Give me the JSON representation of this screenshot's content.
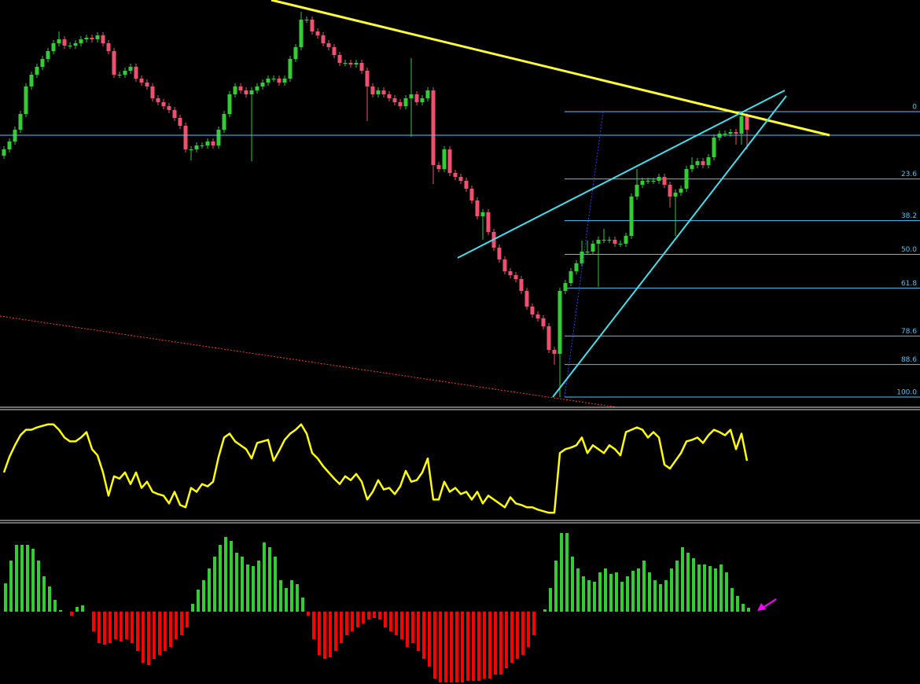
{
  "chart_data": [
    {
      "type": "candlestick",
      "ylim": [
        0,
        518
      ],
      "up_color": "#32cd32",
      "down_color": "#f0506e",
      "open": [
        320,
        328,
        338,
        353,
        373,
        408,
        423,
        433,
        443,
        453,
        463,
        468,
        460,
        460,
        463,
        468,
        470,
        468,
        473,
        463,
        453,
        423,
        423,
        428,
        433,
        418,
        413,
        408,
        393,
        388,
        383,
        378,
        368,
        358,
        328,
        328,
        333,
        333,
        338,
        333,
        353,
        373,
        398,
        408,
        403,
        398,
        403,
        408,
        413,
        418,
        418,
        413,
        418,
        443,
        458,
        493,
        493,
        478,
        473,
        463,
        458,
        448,
        438,
        438,
        436,
        438,
        428,
        408,
        398,
        403,
        398,
        393,
        388,
        383,
        393,
        398,
        388,
        393,
        403,
        308,
        303,
        328,
        298,
        293,
        288,
        278,
        263,
        243,
        248,
        223,
        203,
        188,
        173,
        168,
        163,
        148,
        128,
        118,
        113,
        103,
        73,
        68,
        148,
        158,
        173,
        183,
        198,
        198,
        208,
        213,
        213,
        213,
        208,
        208,
        218,
        268,
        283,
        288,
        288,
        288,
        293,
        283,
        268,
        273,
        278,
        303,
        308,
        313,
        308,
        318,
        343,
        348,
        348,
        350,
        348,
        370
      ],
      "high": [
        332,
        342,
        357,
        377,
        412,
        427,
        437,
        447,
        457,
        467,
        478,
        472,
        464,
        467,
        472,
        474,
        474,
        477,
        477,
        467,
        457,
        427,
        432,
        437,
        437,
        422,
        417,
        412,
        397,
        392,
        387,
        382,
        372,
        362,
        332,
        337,
        337,
        342,
        342,
        357,
        377,
        402,
        412,
        412,
        407,
        407,
        412,
        417,
        422,
        422,
        422,
        422,
        447,
        462,
        503,
        497,
        497,
        482,
        477,
        467,
        462,
        452,
        442,
        442,
        442,
        442,
        432,
        412,
        407,
        407,
        402,
        397,
        392,
        397,
        444,
        402,
        397,
        407,
        407,
        312,
        332,
        332,
        302,
        297,
        292,
        282,
        267,
        252,
        252,
        227,
        207,
        192,
        177,
        172,
        167,
        152,
        132,
        122,
        117,
        107,
        77,
        152,
        162,
        177,
        187,
        212,
        212,
        212,
        217,
        227,
        217,
        217,
        212,
        222,
        272,
        303,
        292,
        292,
        292,
        297,
        297,
        287,
        277,
        282,
        307,
        318,
        317,
        317,
        322,
        347,
        352,
        352,
        354,
        354,
        376,
        374
      ],
      "low": [
        316,
        324,
        334,
        349,
        369,
        404,
        419,
        429,
        439,
        449,
        459,
        456,
        456,
        456,
        459,
        464,
        464,
        464,
        459,
        449,
        419,
        419,
        419,
        424,
        414,
        409,
        404,
        389,
        384,
        379,
        374,
        364,
        354,
        324,
        314,
        324,
        329,
        329,
        329,
        329,
        349,
        369,
        394,
        399,
        394,
        313,
        399,
        404,
        409,
        414,
        409,
        409,
        414,
        439,
        454,
        489,
        474,
        469,
        459,
        454,
        444,
        434,
        434,
        432,
        432,
        424,
        364,
        394,
        394,
        394,
        389,
        384,
        379,
        379,
        344,
        384,
        384,
        389,
        284,
        299,
        299,
        294,
        289,
        284,
        274,
        259,
        239,
        213,
        219,
        199,
        184,
        169,
        164,
        159,
        144,
        124,
        114,
        109,
        99,
        69,
        54,
        13,
        144,
        154,
        169,
        179,
        194,
        194,
        153,
        209,
        209,
        204,
        204,
        204,
        214,
        264,
        279,
        284,
        284,
        284,
        279,
        254,
        218,
        269,
        274,
        299,
        304,
        304,
        304,
        314,
        339,
        344,
        344,
        334,
        334,
        328
      ],
      "close": [
        328,
        338,
        353,
        373,
        408,
        423,
        433,
        443,
        453,
        463,
        468,
        460,
        460,
        463,
        468,
        470,
        468,
        473,
        463,
        453,
        423,
        423,
        428,
        433,
        418,
        413,
        408,
        393,
        388,
        383,
        378,
        368,
        358,
        328,
        328,
        333,
        333,
        338,
        333,
        353,
        373,
        398,
        408,
        403,
        398,
        403,
        408,
        413,
        418,
        418,
        413,
        418,
        443,
        458,
        493,
        493,
        478,
        473,
        463,
        458,
        448,
        438,
        438,
        436,
        438,
        428,
        408,
        398,
        403,
        398,
        393,
        388,
        383,
        393,
        398,
        388,
        393,
        403,
        308,
        303,
        328,
        298,
        293,
        288,
        278,
        263,
        243,
        248,
        223,
        203,
        188,
        173,
        168,
        163,
        148,
        128,
        118,
        113,
        103,
        73,
        68,
        148,
        158,
        173,
        183,
        198,
        198,
        208,
        213,
        213,
        213,
        208,
        208,
        218,
        268,
        283,
        288,
        288,
        288,
        293,
        283,
        268,
        273,
        278,
        303,
        308,
        313,
        308,
        318,
        343,
        348,
        348,
        350,
        348,
        370,
        353
      ],
      "fibonacci": {
        "color": "#4fc3f7",
        "from": 376,
        "to": 13,
        "levels": [
          0,
          {
            "value": 23.6,
            "label": "23.6"
          },
          {
            "value": 38.2,
            "label": "38.2"
          },
          {
            "value": 50,
            "label": "50.0"
          },
          {
            "value": 61.8,
            "label": "61.8"
          },
          {
            "value": 78.6,
            "label": "78.6"
          },
          {
            "value": 88.6,
            "label": "88.6"
          },
          {
            "value": 100,
            "label": "100.0"
          }
        ]
      }
    },
    {
      "type": "line",
      "ylim": [
        -2,
        140
      ],
      "color": "#ffff00",
      "values": [
        60,
        80,
        95,
        108,
        115,
        115,
        118,
        120,
        122,
        122,
        115,
        105,
        100,
        100,
        105,
        112,
        90,
        82,
        60,
        30,
        55,
        52,
        60,
        45,
        60,
        40,
        48,
        35,
        32,
        30,
        20,
        35,
        18,
        15,
        40,
        35,
        45,
        42,
        48,
        80,
        105,
        110,
        100,
        95,
        90,
        78,
        98,
        100,
        102,
        75,
        88,
        102,
        110,
        115,
        122,
        110,
        85,
        78,
        68,
        60,
        52,
        45,
        55,
        50,
        58,
        48,
        25,
        35,
        50,
        38,
        40,
        32,
        42,
        62,
        48,
        50,
        60,
        78,
        25,
        25,
        48,
        35,
        40,
        32,
        35,
        25,
        35,
        20,
        30,
        25,
        20,
        15,
        28,
        20,
        18,
        15,
        15,
        12,
        10,
        8,
        8,
        85,
        90,
        92,
        95,
        105,
        85,
        95,
        90,
        85,
        95,
        90,
        82,
        112,
        115,
        118,
        115,
        105,
        112,
        105,
        70,
        65,
        75,
        85,
        100,
        102,
        105,
        98,
        108,
        115,
        112,
        108,
        115,
        90,
        110,
        75
      ]
    },
    {
      "type": "bar",
      "ylim": [
        -92,
        112
      ],
      "up_color": "#32cd32",
      "down_color": "#ff0000",
      "values": [
        36,
        65,
        85,
        85,
        85,
        80,
        65,
        45,
        32,
        15,
        2,
        0,
        -5,
        6,
        8,
        0,
        -25,
        -40,
        -42,
        -40,
        -35,
        -38,
        -35,
        -40,
        -50,
        -65,
        -68,
        -60,
        -55,
        -50,
        -45,
        -35,
        -30,
        -20,
        10,
        28,
        40,
        55,
        70,
        85,
        95,
        90,
        75,
        70,
        60,
        58,
        65,
        88,
        82,
        70,
        40,
        30,
        40,
        35,
        18,
        -5,
        -35,
        -55,
        -60,
        -58,
        -50,
        -40,
        -30,
        -25,
        -20,
        -15,
        -10,
        -8,
        -10,
        -20,
        -25,
        -30,
        -35,
        -45,
        -40,
        -50,
        -60,
        -70,
        -85,
        -90,
        -90,
        -90,
        -90,
        -90,
        -88,
        -88,
        -88,
        -85,
        -85,
        -80,
        -80,
        -72,
        -65,
        -60,
        -55,
        -45,
        -30,
        0,
        3,
        30,
        65,
        100,
        100,
        70,
        55,
        45,
        40,
        38,
        50,
        55,
        48,
        50,
        38,
        45,
        52,
        55,
        65,
        50,
        40,
        35,
        40,
        55,
        65,
        82,
        75,
        68,
        60,
        60,
        58,
        55,
        60,
        50,
        30,
        20,
        10,
        5
      ]
    }
  ]
}
